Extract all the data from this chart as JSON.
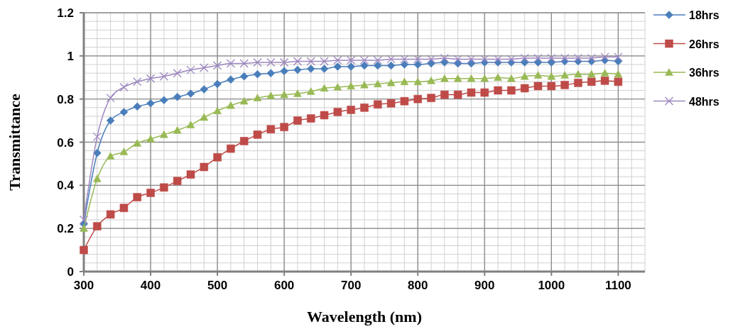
{
  "chart_data": {
    "type": "line",
    "xlabel": "Wavelength (nm)",
    "ylabel": "Transmittance",
    "x": [
      300,
      320,
      340,
      360,
      380,
      400,
      420,
      440,
      460,
      480,
      500,
      520,
      540,
      560,
      580,
      600,
      620,
      640,
      660,
      680,
      700,
      720,
      740,
      760,
      780,
      800,
      820,
      840,
      860,
      880,
      900,
      920,
      940,
      960,
      980,
      1000,
      1020,
      1040,
      1060,
      1080,
      1100
    ],
    "series": [
      {
        "name": "18hrs",
        "color": "#4a7ebb",
        "marker": "diamond",
        "values": [
          0.22,
          0.55,
          0.7,
          0.74,
          0.765,
          0.78,
          0.795,
          0.81,
          0.825,
          0.845,
          0.87,
          0.89,
          0.905,
          0.915,
          0.92,
          0.93,
          0.935,
          0.94,
          0.94,
          0.95,
          0.95,
          0.955,
          0.955,
          0.955,
          0.96,
          0.96,
          0.965,
          0.97,
          0.965,
          0.965,
          0.97,
          0.97,
          0.97,
          0.97,
          0.97,
          0.97,
          0.975,
          0.975,
          0.975,
          0.98,
          0.975
        ]
      },
      {
        "name": "26hrs",
        "color": "#be4b48",
        "marker": "square",
        "values": [
          0.1,
          0.21,
          0.265,
          0.295,
          0.345,
          0.365,
          0.39,
          0.42,
          0.45,
          0.485,
          0.53,
          0.57,
          0.605,
          0.635,
          0.66,
          0.67,
          0.7,
          0.71,
          0.725,
          0.74,
          0.75,
          0.76,
          0.775,
          0.78,
          0.79,
          0.8,
          0.805,
          0.82,
          0.82,
          0.83,
          0.83,
          0.84,
          0.84,
          0.85,
          0.86,
          0.86,
          0.865,
          0.875,
          0.88,
          0.885,
          0.88
        ]
      },
      {
        "name": "36hrs",
        "color": "#98b954",
        "marker": "triangle",
        "values": [
          0.2,
          0.43,
          0.535,
          0.555,
          0.595,
          0.615,
          0.635,
          0.655,
          0.68,
          0.715,
          0.745,
          0.77,
          0.79,
          0.805,
          0.815,
          0.82,
          0.825,
          0.835,
          0.85,
          0.855,
          0.86,
          0.865,
          0.87,
          0.875,
          0.88,
          0.88,
          0.885,
          0.895,
          0.895,
          0.895,
          0.895,
          0.9,
          0.895,
          0.905,
          0.91,
          0.905,
          0.91,
          0.915,
          0.915,
          0.92,
          0.915
        ]
      },
      {
        "name": "48hrs",
        "color": "#9d86c0",
        "marker": "cross",
        "values": [
          0.24,
          0.625,
          0.805,
          0.855,
          0.88,
          0.895,
          0.905,
          0.92,
          0.935,
          0.945,
          0.955,
          0.965,
          0.965,
          0.97,
          0.97,
          0.97,
          0.975,
          0.975,
          0.975,
          0.98,
          0.98,
          0.98,
          0.98,
          0.985,
          0.985,
          0.985,
          0.985,
          0.99,
          0.985,
          0.985,
          0.985,
          0.985,
          0.985,
          0.99,
          0.99,
          0.99,
          0.99,
          0.99,
          0.99,
          0.995,
          0.995
        ]
      }
    ],
    "xlim": [
      300,
      1140
    ],
    "xticks": [
      300,
      400,
      500,
      600,
      700,
      800,
      900,
      1000,
      1100
    ],
    "ylim": [
      0,
      1.2
    ],
    "yticks": [
      0,
      0.2,
      0.4,
      0.6,
      0.8,
      1,
      1.2
    ],
    "grid": true,
    "legend": "right"
  }
}
